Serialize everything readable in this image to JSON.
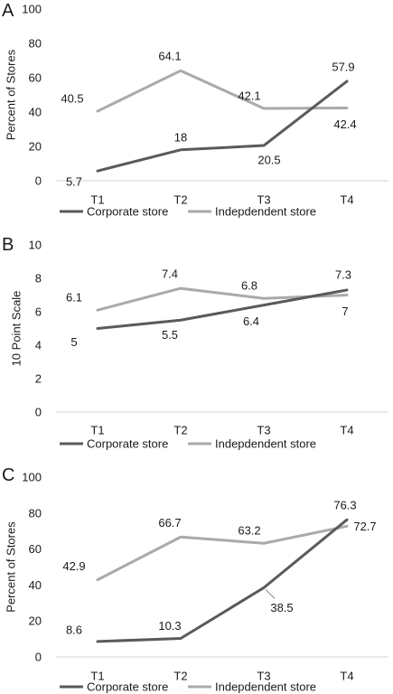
{
  "chart_data": [
    {
      "type": "line",
      "panel_letter": "A",
      "ylabel": "Percent of Stores",
      "ylim": [
        0,
        100
      ],
      "yticks": [
        0,
        20,
        40,
        60,
        80,
        100
      ],
      "categories": [
        "T1",
        "T2",
        "T3",
        "T4"
      ],
      "grid": false,
      "legend_position": "bottom",
      "series": [
        {
          "name": "Corporate store",
          "color": "#5a5a5a",
          "values": [
            5.7,
            18,
            20.5,
            57.9
          ],
          "labels": [
            "5.7",
            "18",
            "20.5",
            "57.9"
          ]
        },
        {
          "name": "Indepdendent store",
          "color": "#aaaaaa",
          "values": [
            40.5,
            64.1,
            42.1,
            42.4
          ],
          "labels": [
            "40.5",
            "64.1",
            "42.1",
            "42.4"
          ]
        }
      ]
    },
    {
      "type": "line",
      "panel_letter": "B",
      "ylabel": "10 Point Scale",
      "ylim": [
        0,
        10
      ],
      "yticks": [
        0,
        2,
        4,
        6,
        8,
        10
      ],
      "categories": [
        "T1",
        "T2",
        "T3",
        "T4"
      ],
      "grid": false,
      "legend_position": "bottom",
      "series": [
        {
          "name": "Corporate store",
          "color": "#5a5a5a",
          "values": [
            5,
            5.5,
            6.4,
            7.3
          ],
          "labels": [
            "5",
            "5.5",
            "6.4",
            "7.3"
          ]
        },
        {
          "name": "Indepdendent store",
          "color": "#aaaaaa",
          "values": [
            6.1,
            7.4,
            6.8,
            7
          ],
          "labels": [
            "6.1",
            "7.4",
            "6.8",
            "7"
          ]
        }
      ]
    },
    {
      "type": "line",
      "panel_letter": "C",
      "ylabel": "Percent of Stores",
      "ylim": [
        0,
        100
      ],
      "yticks": [
        0,
        20,
        40,
        60,
        80,
        100
      ],
      "categories": [
        "T1",
        "T2",
        "T3",
        "T4"
      ],
      "grid": false,
      "legend_position": "bottom",
      "series": [
        {
          "name": "Corporate store",
          "color": "#5a5a5a",
          "values": [
            8.6,
            10.3,
            38.5,
            76.3
          ],
          "labels": [
            "8.6",
            "10.3",
            "38.5",
            "76.3"
          ]
        },
        {
          "name": "Indepdendent store",
          "color": "#aaaaaa",
          "values": [
            42.9,
            66.7,
            63.2,
            72.7
          ],
          "labels": [
            "42.9",
            "66.7",
            "63.2",
            "72.7"
          ]
        }
      ]
    }
  ]
}
